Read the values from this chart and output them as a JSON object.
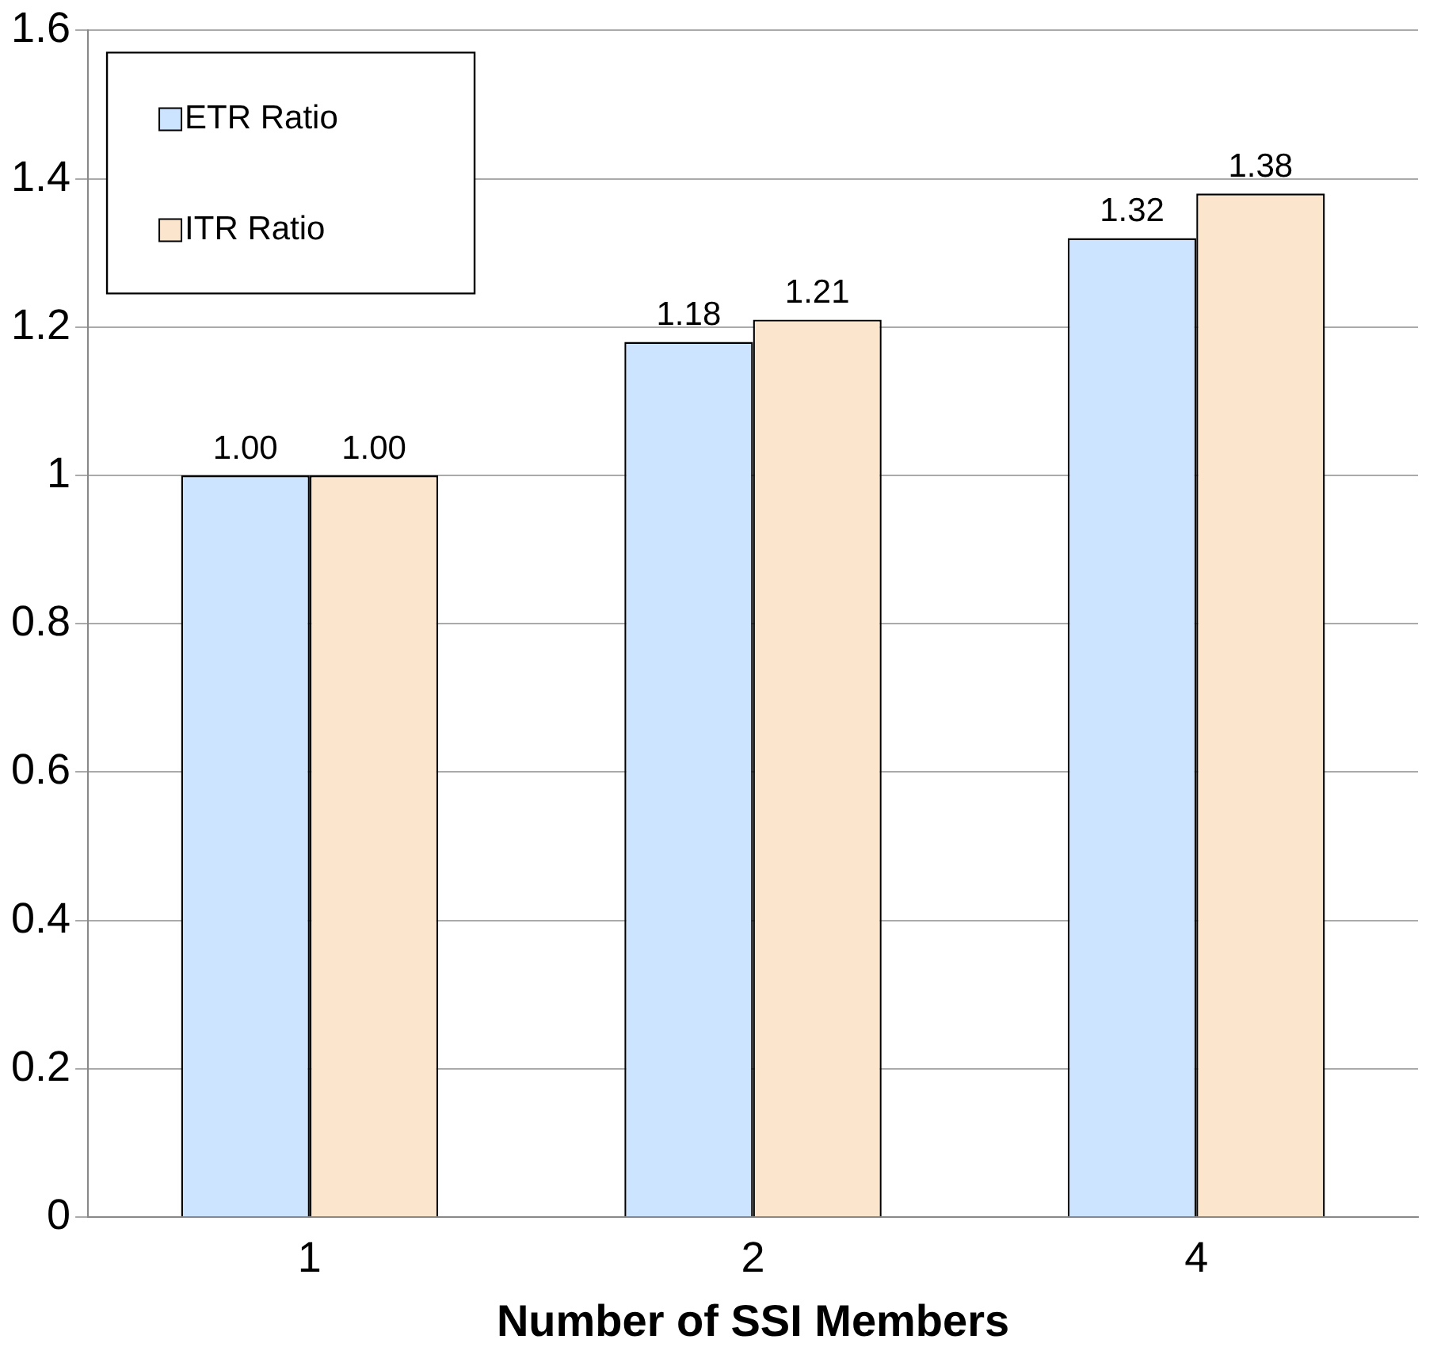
{
  "chart_data": {
    "type": "bar",
    "xlabel": "Number of SSI Members",
    "categories": [
      "1",
      "2",
      "4"
    ],
    "series": [
      {
        "name": "ETR Ratio",
        "color": "#cce4ff",
        "values": [
          1.0,
          1.18,
          1.32
        ],
        "value_labels": [
          "1.00",
          "1.18",
          "1.32"
        ]
      },
      {
        "name": "ITR Ratio",
        "color": "#fbe5cc",
        "values": [
          1.0,
          1.21,
          1.38
        ],
        "value_labels": [
          "1.00",
          "1.21",
          "1.38"
        ]
      }
    ],
    "ylim": [
      0,
      1.6
    ],
    "yticks": [
      0,
      {
        "value": 0.2,
        "label": "0.2"
      },
      {
        "value": 0.4,
        "label": "0.4"
      },
      {
        "value": 0.6,
        "label": "0.6"
      },
      {
        "value": 0.8,
        "label": "0.8"
      },
      1,
      {
        "value": 1.2,
        "label": "1.2"
      },
      {
        "value": 1.4,
        "label": "1.4"
      },
      {
        "value": 1.6,
        "label": "1.6"
      }
    ],
    "grid": "y",
    "legend": "top left"
  }
}
